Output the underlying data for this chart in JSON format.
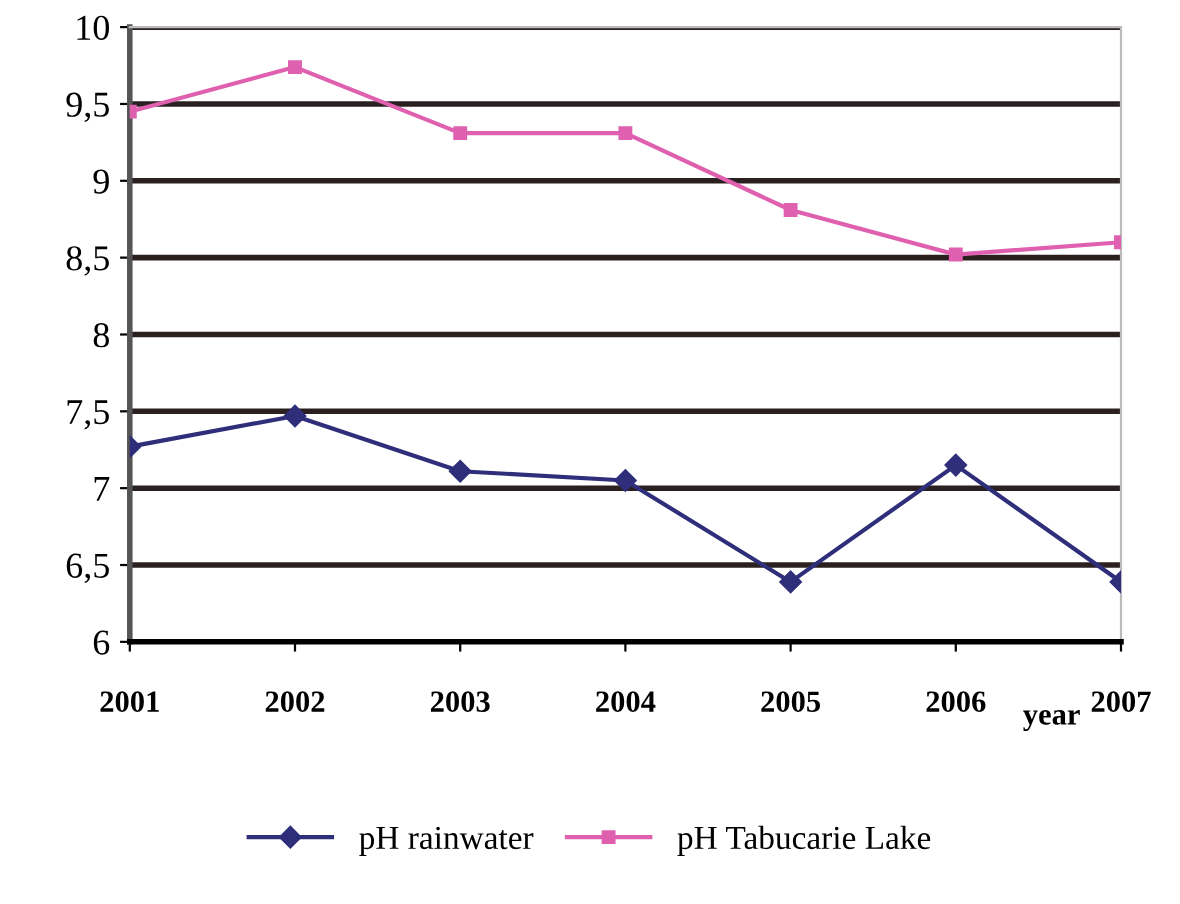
{
  "chart_data": {
    "type": "line",
    "xlabel": "year",
    "categories": [
      "2001",
      "2002",
      "2003",
      "2004",
      "2005",
      "2006",
      "2007"
    ],
    "series": [
      {
        "name": "pH rainwater",
        "color": "#2e2e7a",
        "marker": "diamond",
        "values": [
          7.27,
          7.47,
          7.11,
          7.05,
          6.39,
          7.15,
          6.39
        ]
      },
      {
        "name": "pH Tabucarie Lake",
        "color": "#e060b0",
        "marker": "square",
        "values": [
          9.45,
          9.74,
          9.31,
          9.31,
          8.81,
          8.52,
          8.6
        ]
      }
    ],
    "ylim": [
      6,
      10
    ],
    "yticks": [
      6,
      {
        "value": 6.5,
        "label": "6,5"
      },
      7,
      {
        "value": 7.5,
        "label": "7,5"
      },
      8,
      {
        "value": 8.5,
        "label": "8,5"
      },
      9,
      {
        "value": 9.5,
        "label": "9,5"
      },
      10
    ],
    "grid": "y",
    "legend": "bottom",
    "line_style": "solid"
  }
}
